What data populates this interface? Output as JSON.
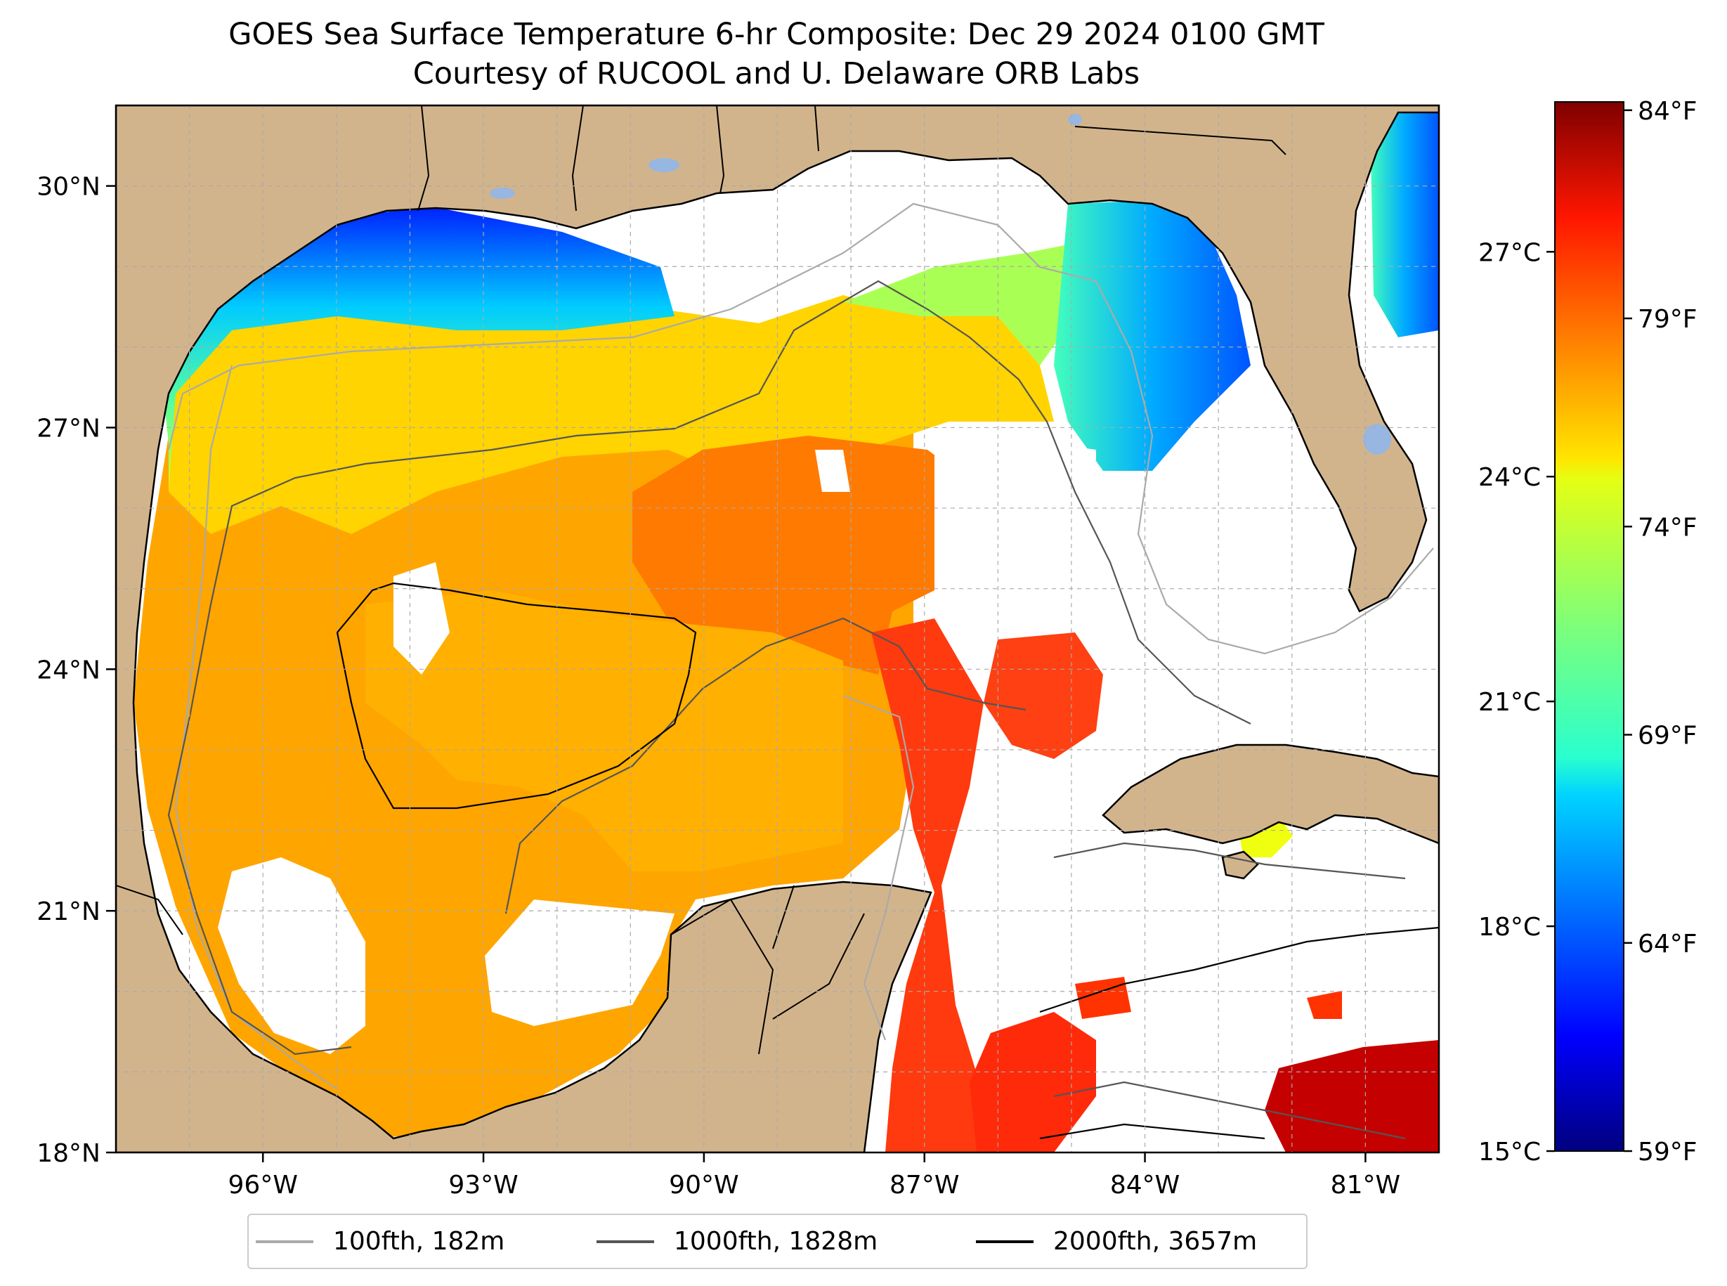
{
  "title_line1": "GOES Sea Surface Temperature 6-hr Composite: Dec 29 2024 0100 GMT",
  "title_line2": "Courtesy of RUCOOL and U. Delaware ORB Labs",
  "map": {
    "lon_range": [
      -98,
      -80
    ],
    "lat_range": [
      18,
      31
    ],
    "lon_ticks": [
      "96°W",
      "93°W",
      "90°W",
      "87°W",
      "84°W",
      "81°W"
    ],
    "lon_tick_values": [
      -96,
      -93,
      -90,
      -87,
      -84,
      -81
    ],
    "lat_ticks": [
      "18°N",
      "21°N",
      "24°N",
      "27°N",
      "30°N"
    ],
    "lat_tick_values": [
      18,
      21,
      24,
      27,
      30
    ],
    "grid": true,
    "land_color": "#d2b48c",
    "water_body_color": "#97b6e1",
    "no_data_color": "#ffffff"
  },
  "colorbar": {
    "colormap": "jet",
    "celsius_range": [
      15,
      29
    ],
    "celsius_ticks": [
      "15°C",
      "18°C",
      "21°C",
      "24°C",
      "27°C"
    ],
    "celsius_tick_values": [
      15,
      18,
      21,
      24,
      27
    ],
    "fahrenheit_ticks": [
      "59°F",
      "64°F",
      "69°F",
      "74°F",
      "79°F",
      "84°F"
    ],
    "fahrenheit_tick_values": [
      59,
      64,
      69,
      74,
      79,
      84
    ]
  },
  "legend": {
    "placement": "bottom-center",
    "items": [
      {
        "label": "100fth, 182m",
        "color": "#aaaaaa"
      },
      {
        "label": "1000fth, 1828m",
        "color": "#555555"
      },
      {
        "label": "2000fth, 3657m",
        "color": "#000000"
      }
    ]
  }
}
